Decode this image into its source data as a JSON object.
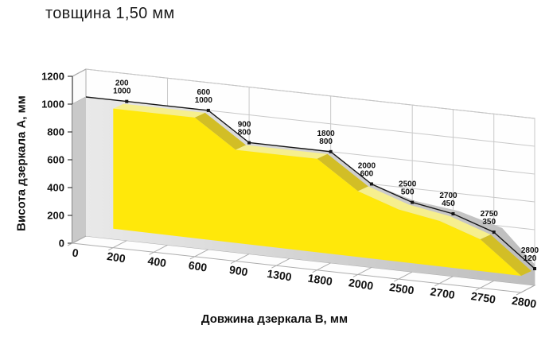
{
  "chart_data": {
    "type": "area",
    "style": "3d-area",
    "title": "товщина 1,50 мм",
    "xlabel": "Довжина дзеркала В, мм",
    "ylabel": "Висота дзеркала А, мм",
    "categories": [
      0,
      200,
      400,
      600,
      900,
      1300,
      1800,
      2000,
      2500,
      2700,
      2750,
      2800
    ],
    "values": [
      1000,
      1000,
      1000,
      1000,
      800,
      800,
      800,
      600,
      500,
      450,
      350,
      120
    ],
    "x_tick_labels": [
      "0",
      "200",
      "400",
      "600",
      "900",
      "1300",
      "1800",
      "2000",
      "2500",
      "2700",
      "2750",
      "2800"
    ],
    "y_ticks": [
      0,
      200,
      400,
      600,
      800,
      1000,
      1200
    ],
    "ylim": [
      0,
      1200
    ],
    "labeled_points": [
      {
        "b": 200,
        "a": 1000
      },
      {
        "b": 600,
        "a": 1000
      },
      {
        "b": 900,
        "a": 800
      },
      {
        "b": 1800,
        "a": 800
      },
      {
        "b": 2000,
        "a": 600
      },
      {
        "b": 2500,
        "a": 500
      },
      {
        "b": 2700,
        "a": 450
      },
      {
        "b": 2750,
        "a": 350
      },
      {
        "b": 2800,
        "a": 120
      }
    ],
    "wall_vertical_grid_at": [
      400,
      900,
      1800,
      2500,
      2700,
      2750,
      2800
    ],
    "legend": "none",
    "grid": true,
    "colors": {
      "area_front": "#FFE80A",
      "area_top_flat": "#F6EF8E",
      "area_bevel_steep": "#D2BE26",
      "shadow_light": "#E9E9E9",
      "shadow_dark": "#BDBDBD",
      "shadow_side": "#C9C9C9",
      "grid": "#C8C8C8",
      "frame": "#ACACAC",
      "line": "#161616",
      "text": "#111111",
      "background": "#FFFFFF"
    }
  }
}
